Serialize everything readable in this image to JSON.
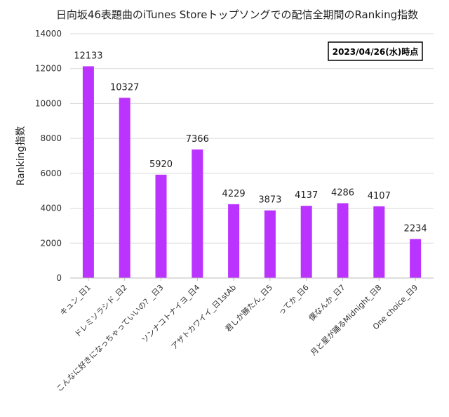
{
  "chart_data": {
    "type": "bar",
    "title": "日向坂46表題曲のiTunes Storeトップソングでの配信全期間のRanking指数",
    "annotation": "2023/04/26(水)時点",
    "xlabel": "",
    "ylabel": "Ranking指数",
    "ylim": [
      0,
      14000
    ],
    "yticks": [
      0,
      2000,
      4000,
      6000,
      8000,
      10000,
      12000,
      14000
    ],
    "grid": true,
    "legend": "none",
    "bar_color": "#BB33FF",
    "categories": [
      "キュン_日1",
      "ドレミソラシド_日2",
      "こんなに好きになっちゃっていいの？_日3",
      "ソンナコトナイヨ_日4",
      "アザトカワイイ_日1stAb",
      "君しか勝たん_日5",
      "ってか_日6",
      "僕なんか_日7",
      "月と星が踊るMidnight_日8",
      "One choice_日9"
    ],
    "values": [
      12133,
      10327,
      5920,
      7366,
      4229,
      3873,
      4137,
      4286,
      4107,
      2234
    ]
  }
}
